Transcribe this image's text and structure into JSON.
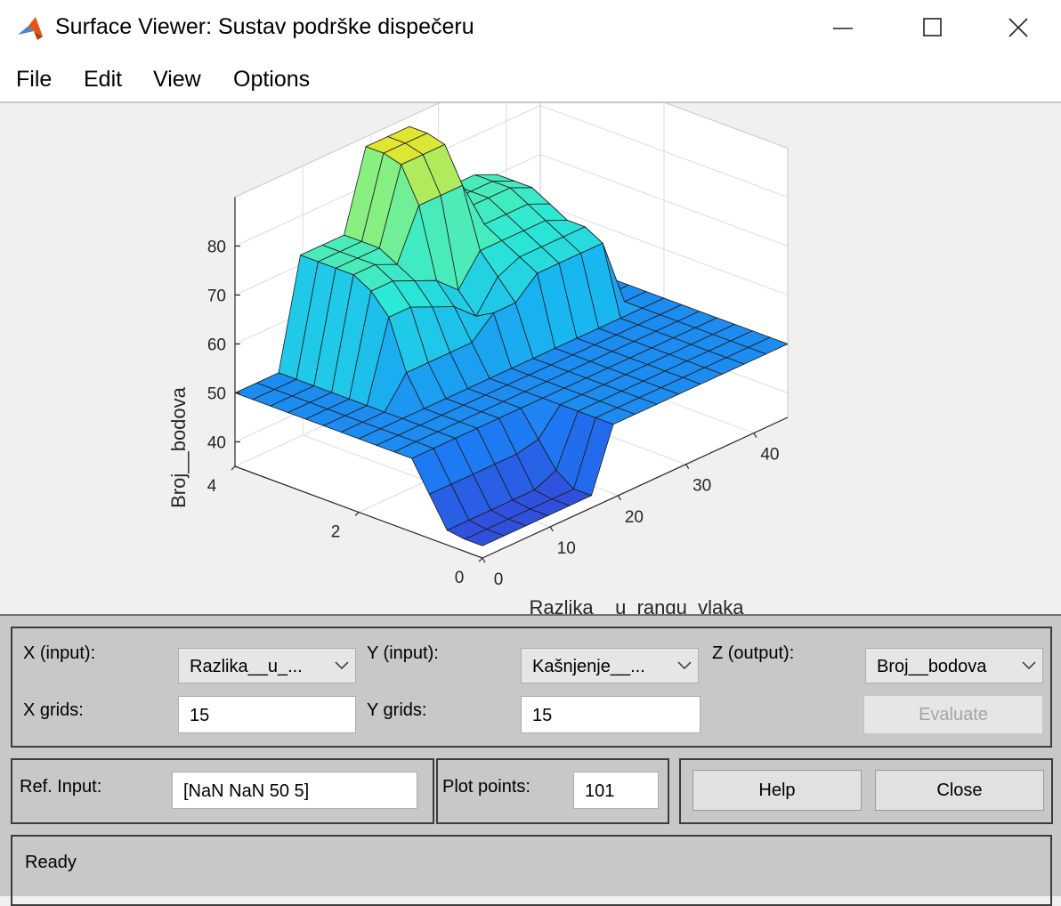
{
  "window": {
    "title": "Surface Viewer: Sustav podrške dispečeru",
    "icon": "matlab-icon",
    "controls": [
      "minimize-icon",
      "maximize-icon",
      "close-icon"
    ]
  },
  "menu": [
    "File",
    "Edit",
    "View",
    "Options"
  ],
  "chart_data": {
    "type": "surface",
    "xlabel": "Razlika__u_rangu_vlaka",
    "ylabel": "",
    "zlabel": "Broj__bodova",
    "x_ticks": [
      "0",
      "10",
      "20",
      "30",
      "40"
    ],
    "y_ticks": [
      "0",
      "2",
      "4"
    ],
    "z_ticks": [
      "40",
      "50",
      "60",
      "70",
      "80"
    ],
    "xlim": [
      0,
      45
    ],
    "ylim": [
      0,
      4
    ],
    "zlim": [
      35,
      90
    ],
    "grid": true,
    "colormap": [
      "#3545d6",
      "#1f74f2",
      "#19b7f0",
      "#2ce8d6",
      "#7df08a",
      "#f7e41a"
    ],
    "x_grid_count": 15,
    "y_grid_count": 15,
    "z": [
      [
        37.5,
        37.5,
        37.5,
        37.5,
        37.5,
        37.5,
        50,
        50,
        50,
        50,
        50,
        50,
        50,
        50,
        50
      ],
      [
        37.5,
        37.5,
        37.5,
        37.5,
        37.5,
        37.5,
        50,
        50,
        50,
        50,
        50,
        50,
        50,
        50,
        50
      ],
      [
        38,
        38,
        38,
        38,
        38,
        40,
        50,
        50,
        50,
        50,
        50,
        50,
        50,
        50,
        50
      ],
      [
        44,
        44,
        44,
        44,
        44,
        45,
        50,
        50,
        50,
        50,
        50,
        50,
        50,
        50,
        50
      ],
      [
        50,
        50,
        50,
        50,
        50,
        50,
        50,
        50,
        50,
        50,
        50,
        50,
        50,
        50,
        50
      ],
      [
        50,
        50,
        50,
        50,
        50,
        50,
        50,
        50,
        50,
        50,
        50,
        50,
        50,
        50,
        50
      ],
      [
        50,
        50,
        50,
        50,
        50,
        50,
        50,
        50,
        50,
        50,
        50,
        50,
        50,
        50,
        50
      ],
      [
        50,
        50,
        50,
        50,
        50,
        50,
        50,
        50,
        50,
        50,
        50,
        50,
        50,
        50,
        50
      ],
      [
        50,
        50,
        50,
        56,
        56,
        56,
        56,
        60,
        60,
        64,
        64,
        64,
        64,
        50,
        50
      ],
      [
        50,
        50,
        50,
        66,
        66,
        64,
        62,
        58,
        64,
        66,
        66,
        66,
        66,
        50,
        50
      ],
      [
        50,
        50,
        50,
        70,
        70,
        68,
        66,
        62,
        68,
        68,
        68,
        68,
        66,
        50,
        50
      ],
      [
        50,
        50,
        50,
        72,
        72,
        70,
        80,
        80,
        80,
        70,
        70,
        70,
        68,
        50,
        50
      ],
      [
        50,
        50,
        50,
        72,
        72,
        72,
        87,
        87,
        87,
        72,
        72,
        72,
        70,
        50,
        50
      ],
      [
        50,
        50,
        50,
        72,
        72,
        72,
        88,
        88,
        88,
        72,
        72,
        72,
        70,
        50,
        50
      ],
      [
        50,
        50,
        50,
        72,
        72,
        72,
        88,
        88,
        88,
        72,
        72,
        72,
        70,
        50,
        50
      ]
    ]
  },
  "controls": {
    "x_input_label": "X (input):",
    "x_input_value": "Razlika__u_...",
    "y_input_label": "Y (input):",
    "y_input_value": "Kašnjenje__...",
    "z_output_label": "Z (output):",
    "z_output_value": "Broj__bodova",
    "x_grids_label": "X grids:",
    "x_grids_value": "15",
    "y_grids_label": "Y grids:",
    "y_grids_value": "15",
    "evaluate_label": "Evaluate",
    "ref_input_label": "Ref. Input:",
    "ref_input_value": "[NaN NaN 50 5]",
    "plot_points_label": "Plot points:",
    "plot_points_value": "101",
    "help_label": "Help",
    "close_label": "Close"
  },
  "status": "Ready"
}
